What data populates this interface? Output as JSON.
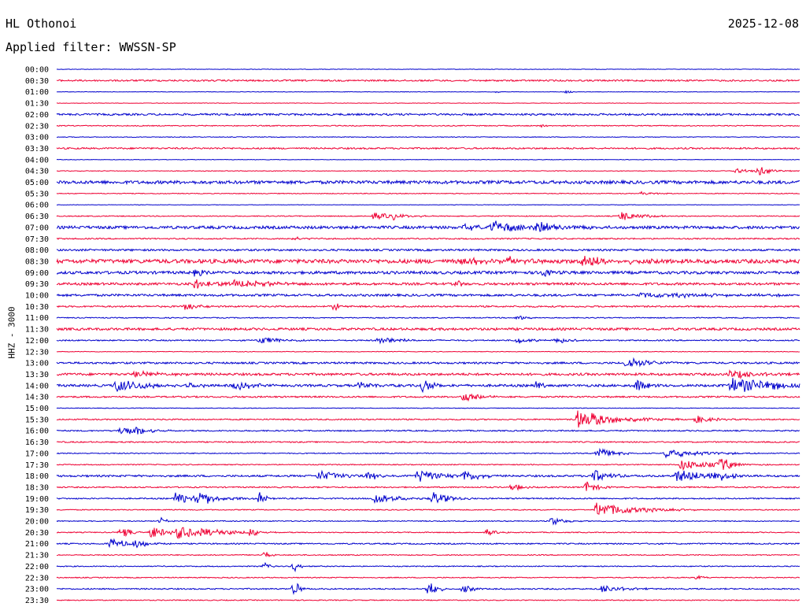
{
  "header": {
    "station": "HL Othonoi",
    "date": "2025-12-08",
    "filter": "Applied filter: WWSSN-SP"
  },
  "channel_label": "HHZ - 3000",
  "colors": {
    "even_hour": "#0000cc",
    "half_hour": "#ee0033"
  },
  "chart_data": {
    "type": "line",
    "title": "HL Othonoi",
    "subtitle": "Applied filter: WWSSN-SP",
    "ylabel": "HHZ - 3000",
    "xlabel": "",
    "row_labels": [
      "00:00",
      "00:30",
      "01:00",
      "01:30",
      "02:00",
      "02:30",
      "03:00",
      "03:30",
      "04:00",
      "04:30",
      "05:00",
      "05:30",
      "06:00",
      "06:30",
      "07:00",
      "07:30",
      "08:00",
      "08:30",
      "09:00",
      "09:30",
      "10:00",
      "10:30",
      "11:00",
      "11:30",
      "12:00",
      "12:30",
      "13:00",
      "13:30",
      "14:00",
      "14:30",
      "15:00",
      "15:30",
      "16:00",
      "16:30",
      "17:00",
      "17:30",
      "18:00",
      "18:30",
      "19:00",
      "19:30",
      "20:00",
      "20:30",
      "21:00",
      "21:30",
      "22:00",
      "22:30",
      "23:00",
      "23:30"
    ],
    "x_range_minutes": [
      0,
      30
    ],
    "grid": false,
    "legend": "none",
    "noise_level": [
      0.3,
      1,
      0.3,
      0.3,
      1.2,
      0.6,
      0.4,
      1,
      0.3,
      0.4,
      2,
      0.5,
      0.3,
      0.6,
      1.8,
      0.8,
      1.2,
      2.5,
      1.8,
      1.5,
      1.4,
      1,
      0.6,
      1.5,
      0.8,
      0.4,
      1.2,
      1.5,
      1.5,
      1,
      0.4,
      0.8,
      0.8,
      0.8,
      0.6,
      0.6,
      1.2,
      0.8,
      0.8,
      0.6,
      0.6,
      0.6,
      0.8,
      0.6,
      0.6,
      0.6,
      0.8,
      0.6
    ],
    "events": [
      {
        "row": 2,
        "t": 17.8,
        "amp": 2,
        "dur": 0.2
      },
      {
        "row": 2,
        "t": 20.6,
        "amp": 2,
        "dur": 0.2
      },
      {
        "row": 5,
        "t": 19.6,
        "amp": 1.5,
        "dur": 0.2
      },
      {
        "row": 9,
        "t": 27.4,
        "amp": 3,
        "dur": 0.6
      },
      {
        "row": 9,
        "t": 28.3,
        "amp": 7,
        "dur": 0.5
      },
      {
        "row": 11,
        "t": 23.6,
        "amp": 2,
        "dur": 0.6
      },
      {
        "row": 13,
        "t": 12.8,
        "amp": 4,
        "dur": 1
      },
      {
        "row": 13,
        "t": 13.6,
        "amp": 3,
        "dur": 0.5
      },
      {
        "row": 13,
        "t": 22.8,
        "amp": 6,
        "dur": 0.8
      },
      {
        "row": 14,
        "t": 17.6,
        "amp": 8,
        "dur": 1.2
      },
      {
        "row": 14,
        "t": 19.4,
        "amp": 7,
        "dur": 1
      },
      {
        "row": 14,
        "t": 16.4,
        "amp": 3,
        "dur": 1.5
      },
      {
        "row": 15,
        "t": 9.6,
        "amp": 2,
        "dur": 0.6
      },
      {
        "row": 17,
        "t": 16.4,
        "amp": 6,
        "dur": 0.6
      },
      {
        "row": 17,
        "t": 18.2,
        "amp": 5,
        "dur": 0.8
      },
      {
        "row": 17,
        "t": 21.2,
        "amp": 7,
        "dur": 1.2
      },
      {
        "row": 18,
        "t": 5.6,
        "amp": 5,
        "dur": 0.4
      },
      {
        "row": 18,
        "t": 19.6,
        "amp": 5,
        "dur": 0.4
      },
      {
        "row": 19,
        "t": 5.6,
        "amp": 7,
        "dur": 1
      },
      {
        "row": 19,
        "t": 7.2,
        "amp": 6,
        "dur": 1.2
      },
      {
        "row": 19,
        "t": 16.2,
        "amp": 5,
        "dur": 0.2
      },
      {
        "row": 20,
        "t": 23.6,
        "amp": 3,
        "dur": 3.5
      },
      {
        "row": 21,
        "t": 5.2,
        "amp": 6,
        "dur": 0.4
      },
      {
        "row": 21,
        "t": 11.2,
        "amp": 5,
        "dur": 0.3
      },
      {
        "row": 22,
        "t": 18.6,
        "amp": 4,
        "dur": 0.3
      },
      {
        "row": 24,
        "t": 8.2,
        "amp": 5,
        "dur": 0.8
      },
      {
        "row": 24,
        "t": 13,
        "amp": 4,
        "dur": 1
      },
      {
        "row": 24,
        "t": 18.6,
        "amp": 4,
        "dur": 0.5
      },
      {
        "row": 24,
        "t": 20.2,
        "amp": 6,
        "dur": 0.4
      },
      {
        "row": 26,
        "t": 23,
        "amp": 8,
        "dur": 0.8
      },
      {
        "row": 27,
        "t": 3.2,
        "amp": 4,
        "dur": 0.8
      },
      {
        "row": 27,
        "t": 27.2,
        "amp": 6,
        "dur": 0.8
      },
      {
        "row": 28,
        "t": 2.4,
        "amp": 8,
        "dur": 1.2
      },
      {
        "row": 28,
        "t": 5.4,
        "amp": 5,
        "dur": 0.3
      },
      {
        "row": 28,
        "t": 7.2,
        "amp": 5,
        "dur": 0.8
      },
      {
        "row": 28,
        "t": 12.2,
        "amp": 5,
        "dur": 0.6
      },
      {
        "row": 28,
        "t": 14.8,
        "amp": 9,
        "dur": 0.4
      },
      {
        "row": 28,
        "t": 19.4,
        "amp": 6,
        "dur": 0.3
      },
      {
        "row": 28,
        "t": 23.4,
        "amp": 8,
        "dur": 0.4
      },
      {
        "row": 28,
        "t": 27.2,
        "amp": 9,
        "dur": 2.4
      },
      {
        "row": 29,
        "t": 16.4,
        "amp": 7,
        "dur": 0.6
      },
      {
        "row": 31,
        "t": 21,
        "amp": 12,
        "dur": 1.4
      },
      {
        "row": 31,
        "t": 25.8,
        "amp": 5,
        "dur": 0.6
      },
      {
        "row": 32,
        "t": 2.6,
        "amp": 6,
        "dur": 0.8
      },
      {
        "row": 32,
        "t": 3.2,
        "amp": 4,
        "dur": 0.5
      },
      {
        "row": 34,
        "t": 21.8,
        "amp": 8,
        "dur": 0.6
      },
      {
        "row": 34,
        "t": 24.6,
        "amp": 6,
        "dur": 1.4
      },
      {
        "row": 35,
        "t": 25.2,
        "amp": 7,
        "dur": 1.2
      },
      {
        "row": 35,
        "t": 26.8,
        "amp": 10,
        "dur": 0.4
      },
      {
        "row": 36,
        "t": 10.6,
        "amp": 7,
        "dur": 0.8
      },
      {
        "row": 36,
        "t": 12.6,
        "amp": 8,
        "dur": 0.3
      },
      {
        "row": 36,
        "t": 14.6,
        "amp": 9,
        "dur": 0.8
      },
      {
        "row": 36,
        "t": 16.4,
        "amp": 8,
        "dur": 0.6
      },
      {
        "row": 36,
        "t": 21.6,
        "amp": 9,
        "dur": 0.6
      },
      {
        "row": 36,
        "t": 25,
        "amp": 9,
        "dur": 1
      },
      {
        "row": 36,
        "t": 26.4,
        "amp": 8,
        "dur": 0.6
      },
      {
        "row": 37,
        "t": 18.4,
        "amp": 6,
        "dur": 0.3
      },
      {
        "row": 37,
        "t": 21.4,
        "amp": 8,
        "dur": 0.4
      },
      {
        "row": 38,
        "t": 4.8,
        "amp": 7,
        "dur": 1.4
      },
      {
        "row": 38,
        "t": 5.8,
        "amp": 9,
        "dur": 0.6
      },
      {
        "row": 38,
        "t": 8.2,
        "amp": 10,
        "dur": 0.2
      },
      {
        "row": 38,
        "t": 12.8,
        "amp": 8,
        "dur": 0.8
      },
      {
        "row": 38,
        "t": 15.2,
        "amp": 9,
        "dur": 0.6
      },
      {
        "row": 39,
        "t": 21.8,
        "amp": 9,
        "dur": 1.6
      },
      {
        "row": 40,
        "t": 4.2,
        "amp": 5,
        "dur": 0.2
      },
      {
        "row": 40,
        "t": 20,
        "amp": 6,
        "dur": 0.4
      },
      {
        "row": 41,
        "t": 2.6,
        "amp": 7,
        "dur": 0.4
      },
      {
        "row": 41,
        "t": 3.8,
        "amp": 8,
        "dur": 0.6
      },
      {
        "row": 41,
        "t": 4.9,
        "amp": 9,
        "dur": 0.8
      },
      {
        "row": 41,
        "t": 5.8,
        "amp": 6,
        "dur": 1.2
      },
      {
        "row": 41,
        "t": 7.8,
        "amp": 6,
        "dur": 0.3
      },
      {
        "row": 41,
        "t": 17.4,
        "amp": 4,
        "dur": 0.3
      },
      {
        "row": 42,
        "t": 2.2,
        "amp": 7,
        "dur": 0.6
      },
      {
        "row": 42,
        "t": 3.1,
        "amp": 6,
        "dur": 0.5
      },
      {
        "row": 43,
        "t": 8.4,
        "amp": 5,
        "dur": 0.2
      },
      {
        "row": 44,
        "t": 8.4,
        "amp": 5,
        "dur": 0.2
      },
      {
        "row": 44,
        "t": 9.6,
        "amp": 7,
        "dur": 0.2
      },
      {
        "row": 45,
        "t": 25.8,
        "amp": 3,
        "dur": 0.3
      },
      {
        "row": 46,
        "t": 9.6,
        "amp": 11,
        "dur": 0.2
      },
      {
        "row": 46,
        "t": 15,
        "amp": 12,
        "dur": 0.3
      },
      {
        "row": 46,
        "t": 16.4,
        "amp": 4,
        "dur": 0.6
      },
      {
        "row": 46,
        "t": 22,
        "amp": 5,
        "dur": 0.8
      }
    ]
  }
}
